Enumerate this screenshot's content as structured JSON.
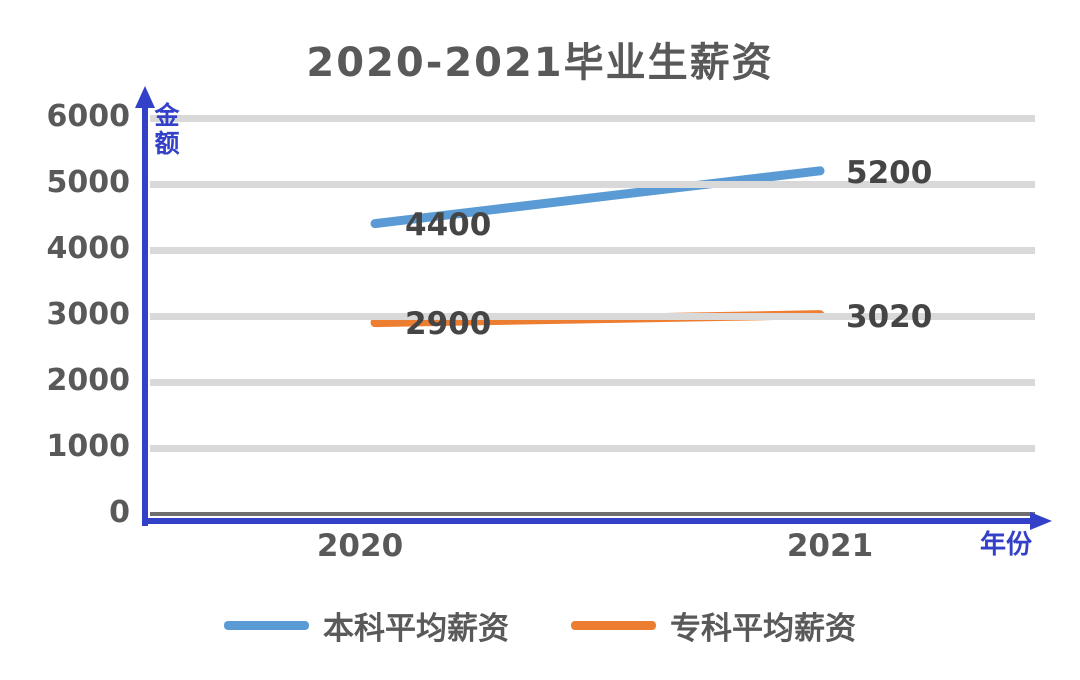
{
  "title": "2020-2021毕业生薪资",
  "axes": {
    "y_unit": "金额",
    "x_unit": "年份",
    "y_ticks": [
      "6000",
      "5000",
      "4000",
      "3000",
      "2000",
      "1000",
      "0"
    ],
    "x_ticks": [
      "2020",
      "2021"
    ]
  },
  "chart_data": {
    "type": "line",
    "title": "2020-2021毕业生薪资",
    "categories": [
      "2020",
      "2021"
    ],
    "series": [
      {
        "name": "本科平均薪资",
        "color": "#5b9bd5",
        "values": [
          4400,
          5200
        ],
        "labels": [
          "4400",
          "5200"
        ]
      },
      {
        "name": "专科平均薪资",
        "color": "#ed7d31",
        "values": [
          2900,
          3020
        ],
        "labels": [
          "2900",
          "3020"
        ]
      }
    ],
    "xlabel": "年份",
    "ylabel": "金额",
    "ylim": [
      0,
      6000
    ],
    "grid": true,
    "legend_position": "bottom"
  },
  "colors": {
    "axis": "#3340c8",
    "grid": "#d9d9d9",
    "baseline": "#6e6e6e",
    "text": "#595959",
    "label": "#454545",
    "series_blue": "#5b9bd5",
    "series_orange": "#ed7d31",
    "background": "#ffffff"
  }
}
